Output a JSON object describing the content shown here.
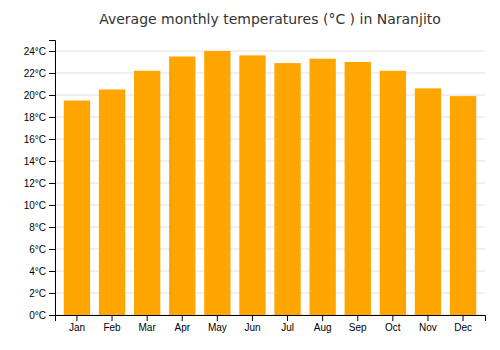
{
  "chart_data": {
    "type": "bar",
    "title": "Average monthly temperatures (°C ) in Naranjito",
    "categories": [
      "Jan",
      "Feb",
      "Mar",
      "Apr",
      "May",
      "Jun",
      "Jul",
      "Aug",
      "Sep",
      "Oct",
      "Nov",
      "Dec"
    ],
    "values": [
      19.5,
      20.5,
      22.2,
      23.5,
      24.0,
      23.6,
      22.9,
      23.3,
      23.0,
      22.2,
      20.6,
      19.9
    ],
    "color": "#FFA500",
    "ylim": [
      0,
      25
    ],
    "yticks": [
      {
        "value": 0,
        "label": "0°C"
      },
      {
        "value": 2,
        "label": "2°C"
      },
      {
        "value": 4,
        "label": "4°C"
      },
      {
        "value": 6,
        "label": "6°C"
      },
      {
        "value": 8,
        "label": "8°C"
      },
      {
        "value": 10,
        "label": "10°C"
      },
      {
        "value": 12,
        "label": "12°C"
      },
      {
        "value": 14,
        "label": "14°C"
      },
      {
        "value": 16,
        "label": "16°C"
      },
      {
        "value": 18,
        "label": "18°C"
      },
      {
        "value": 20,
        "label": "20°C"
      },
      {
        "value": 22,
        "label": "22°C"
      },
      {
        "value": 24,
        "label": "24°C"
      }
    ],
    "grid": true
  }
}
